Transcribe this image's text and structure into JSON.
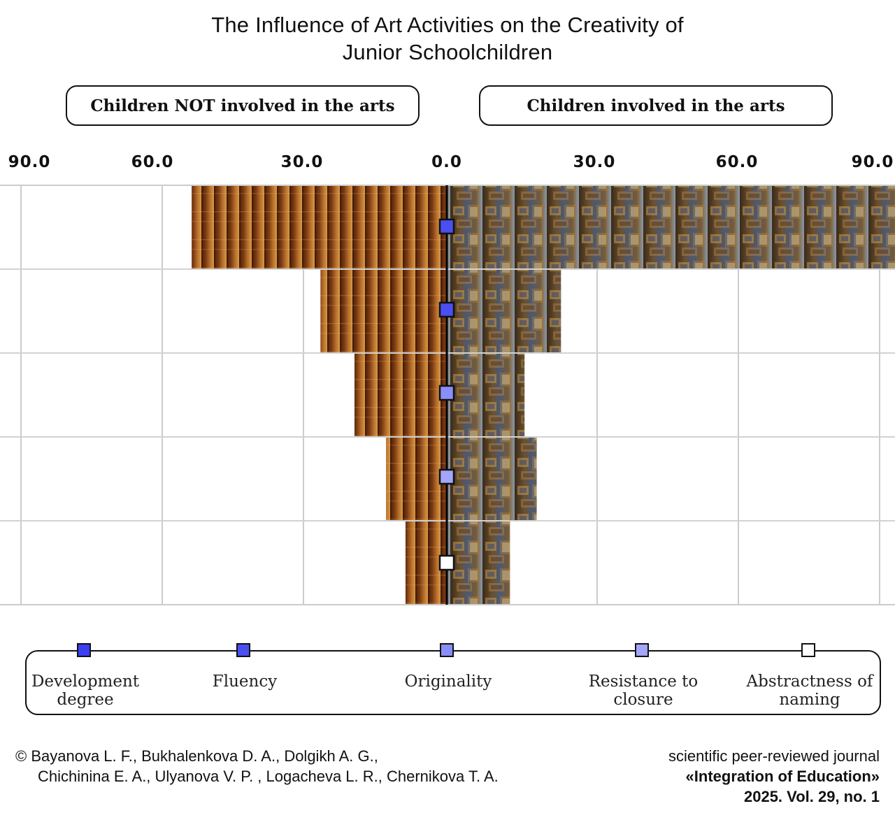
{
  "title": {
    "line1": "The Influence of Art Activities on the Creativity of",
    "line2": "Junior Schoolchildren"
  },
  "groups": {
    "left": "Children NOT involved in the arts",
    "right": "Children involved in the arts"
  },
  "chart_data": {
    "type": "bar",
    "orientation": "horizontal-diverging",
    "xlim": [
      -90,
      90
    ],
    "tick_labels": [
      "90.0",
      "60.0",
      "30.0",
      "0.0",
      "30.0",
      "60.0",
      "90.0"
    ],
    "tick_values": [
      -90,
      -60,
      -30,
      0,
      30,
      60,
      90
    ],
    "categories": [
      "Development degree",
      "Fluency",
      "Originality",
      "Resistance to closure",
      "Abstractness of naming"
    ],
    "series": [
      {
        "name": "Children NOT involved in the arts",
        "values": [
          52.5,
          26,
          19,
          12.5,
          8.5
        ]
      },
      {
        "name": "Children involved in the arts",
        "values": [
          95,
          23.5,
          16,
          18.5,
          13
        ]
      }
    ],
    "marker_colors": [
      "#4a4ff2",
      "#4a4ff2",
      "#8a8ef8",
      "#a4a6fa",
      "#ffffff"
    ],
    "grid": true,
    "legend_position": "bottom"
  },
  "legend": [
    {
      "label": "Development degree",
      "color": "#3a3ff4"
    },
    {
      "label": "Fluency",
      "color": "#4a4ff2"
    },
    {
      "label": "Originality",
      "color": "#8a8ef8"
    },
    {
      "label": "Resistance to closure",
      "color": "#a4a6fa"
    },
    {
      "label": "Abstractness of naming",
      "color": "#ffffff"
    }
  ],
  "footer": {
    "authors_line1": "© Bayanova L. F., Bukhalenkova D. A., Dolgikh A. G.,",
    "authors_line2": "Chichinina E. A., Ulyanova V. P. , Logacheva L. R., Chernikova T. A.",
    "journal_line1": "scientific peer-reviewed journal",
    "journal_line2": "«Integration of Education»",
    "journal_line3": "2025. Vol. 29, no. 1"
  },
  "colors": {
    "left_bar_warm": "#8a4a1c",
    "right_bar_art": "#5a4028",
    "grid": "#cccccc",
    "axis": "#000000"
  }
}
